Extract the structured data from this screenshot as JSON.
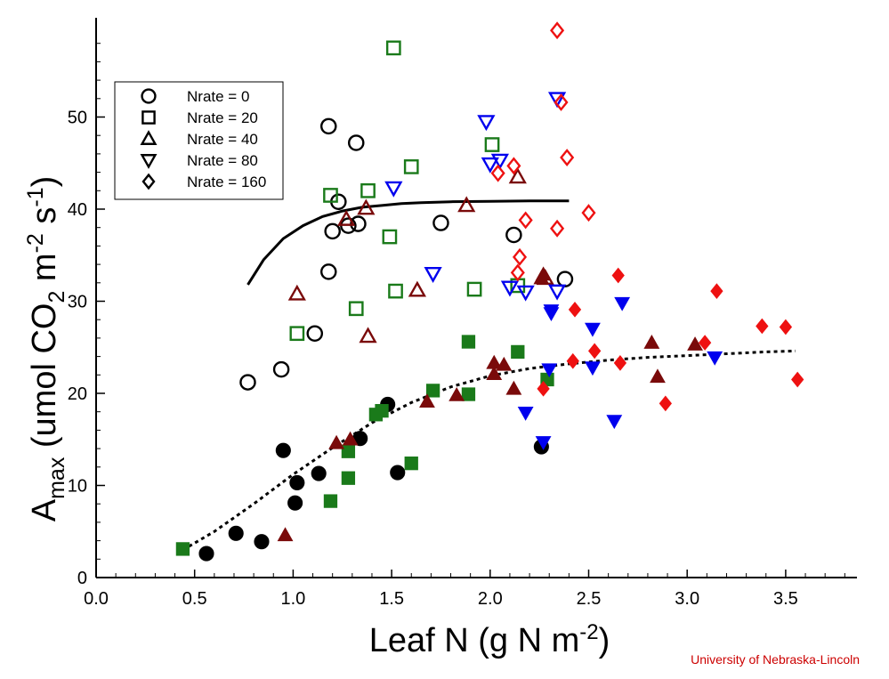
{
  "chart_data": {
    "type": "scatter",
    "title": "",
    "xlabel": "Leaf N (g N m",
    "xlabel_sup": "-2",
    "xlabel_close": ")",
    "ylabel_main": "A",
    "ylabel_sub": "max",
    "ylabel_part1": " (umol CO",
    "ylabel_part1_sub": "2",
    "ylabel_part2": " m",
    "ylabel_sup1": "-2",
    "ylabel_part3": " s",
    "ylabel_sup2": "-1",
    "ylabel_close": ")",
    "xlim": [
      0,
      3.85
    ],
    "ylim": [
      0,
      60
    ],
    "xticks": [
      "0.0",
      "0.5",
      "1.0",
      "1.5",
      "2.0",
      "2.5",
      "3.0",
      "3.5"
    ],
    "yticks": [
      "0",
      "10",
      "20",
      "30",
      "40",
      "50"
    ],
    "grid": false,
    "legend_position": "top-left",
    "colors": {
      "nrate0": "#000000",
      "nrate20": "#1a7a1a",
      "nrate40": "#7a0a0a",
      "nrate80": "#0000ee",
      "nrate160": "#ee1111"
    },
    "legend": [
      {
        "label": "Nrate = 0",
        "marker": "circle"
      },
      {
        "label": "Nrate = 20",
        "marker": "square"
      },
      {
        "label": "Nrate = 40",
        "marker": "triangle-up"
      },
      {
        "label": "Nrate = 80",
        "marker": "triangle-down"
      },
      {
        "label": "Nrate = 160",
        "marker": "diamond"
      }
    ],
    "series": [
      {
        "name": "Nrate = 0",
        "marker": "circle",
        "filled": false,
        "color": "#000000",
        "x": [
          0.77,
          0.94,
          1.11,
          1.18,
          1.18,
          1.2,
          1.23,
          1.28,
          1.32,
          1.33,
          1.75,
          2.12,
          2.38
        ],
        "y": [
          21.2,
          22.6,
          26.5,
          33.2,
          49.0,
          37.6,
          40.8,
          38.2,
          47.2,
          38.4,
          38.5,
          37.2,
          32.4
        ]
      },
      {
        "name": "Nrate = 20",
        "marker": "square",
        "filled": false,
        "color": "#1a7a1a",
        "x": [
          1.02,
          1.19,
          1.32,
          1.38,
          1.49,
          1.52,
          1.51,
          1.6,
          1.92,
          2.01,
          2.14
        ],
        "y": [
          26.5,
          41.5,
          29.2,
          42.0,
          37.0,
          31.1,
          57.5,
          44.6,
          31.3,
          47.0,
          31.7
        ]
      },
      {
        "name": "Nrate = 40",
        "marker": "triangle-up",
        "filled": false,
        "color": "#7a0a0a",
        "x": [
          1.02,
          1.27,
          1.37,
          1.38,
          1.63,
          1.88,
          2.14,
          2.28
        ],
        "y": [
          30.8,
          38.9,
          40.1,
          26.2,
          31.2,
          40.4,
          43.5,
          32.5
        ]
      },
      {
        "name": "Nrate = 80",
        "marker": "triangle-down",
        "filled": false,
        "color": "#0000ee",
        "x": [
          1.51,
          1.71,
          1.98,
          2.0,
          2.05,
          2.1,
          2.18,
          2.34,
          2.34
        ],
        "y": [
          42.3,
          33.0,
          49.5,
          44.9,
          45.3,
          31.5,
          31.0,
          31.1,
          52.0
        ]
      },
      {
        "name": "Nrate = 160",
        "marker": "diamond",
        "filled": false,
        "color": "#ee1111",
        "x": [
          2.04,
          2.12,
          2.15,
          2.14,
          2.18,
          2.34,
          2.34,
          2.36,
          2.39,
          2.5
        ],
        "y": [
          43.9,
          44.7,
          34.8,
          33.1,
          38.8,
          37.9,
          59.4,
          51.6,
          45.6,
          39.6
        ]
      },
      {
        "name": "Nrate = 0",
        "marker": "circle",
        "filled": true,
        "color": "#000000",
        "x": [
          0.56,
          0.71,
          0.84,
          0.95,
          1.01,
          1.02,
          1.13,
          1.34,
          1.48,
          1.53,
          2.26
        ],
        "y": [
          2.6,
          4.8,
          3.9,
          13.8,
          8.1,
          10.3,
          11.3,
          15.1,
          18.8,
          11.4,
          14.2
        ]
      },
      {
        "name": "Nrate = 20",
        "marker": "square",
        "filled": true,
        "color": "#1a7a1a",
        "x": [
          0.44,
          1.19,
          1.28,
          1.28,
          1.42,
          1.45,
          1.6,
          1.71,
          1.89,
          1.89,
          2.14,
          2.29
        ],
        "y": [
          3.1,
          8.3,
          10.8,
          13.7,
          17.7,
          18.1,
          12.4,
          20.3,
          19.9,
          25.6,
          24.5,
          21.5
        ]
      },
      {
        "name": "Nrate = 40",
        "marker": "triangle-up",
        "filled": true,
        "color": "#7a0a0a",
        "x": [
          0.96,
          1.22,
          1.29,
          1.68,
          1.83,
          2.02,
          2.02,
          2.07,
          2.12,
          2.26,
          2.27,
          2.82,
          2.85,
          3.04
        ],
        "y": [
          4.6,
          14.6,
          15.0,
          19.1,
          19.8,
          23.3,
          22.1,
          23.1,
          20.5,
          32.5,
          32.9,
          25.5,
          21.8,
          25.3
        ]
      },
      {
        "name": "Nrate = 80",
        "marker": "triangle-down",
        "filled": true,
        "color": "#0000ee",
        "x": [
          2.18,
          2.27,
          2.3,
          2.31,
          2.31,
          2.52,
          2.52,
          2.63,
          2.67,
          3.14
        ],
        "y": [
          17.9,
          14.7,
          22.6,
          28.7,
          29.0,
          27.0,
          22.8,
          17.0,
          29.8,
          23.9
        ]
      },
      {
        "name": "Nrate = 160",
        "marker": "diamond",
        "filled": true,
        "color": "#ee1111",
        "x": [
          2.27,
          2.42,
          2.43,
          2.53,
          2.65,
          2.66,
          2.89,
          3.09,
          3.15,
          3.38,
          3.5,
          3.56
        ],
        "y": [
          20.5,
          23.5,
          29.1,
          24.6,
          32.8,
          23.3,
          18.9,
          25.5,
          31.1,
          27.3,
          27.2,
          21.5
        ]
      }
    ],
    "fits": [
      {
        "style": "solid",
        "color": "#000000",
        "x": [
          0.77,
          0.85,
          0.95,
          1.05,
          1.15,
          1.25,
          1.35,
          1.45,
          1.55,
          1.65,
          1.8,
          2.0,
          2.2,
          2.4
        ],
        "y": [
          31.8,
          34.5,
          36.8,
          38.2,
          39.2,
          39.8,
          40.2,
          40.4,
          40.6,
          40.7,
          40.8,
          40.85,
          40.9,
          40.9
        ]
      },
      {
        "style": "dotted",
        "color": "#000000",
        "x": [
          0.44,
          0.6,
          0.8,
          1.0,
          1.2,
          1.4,
          1.6,
          1.8,
          2.0,
          2.2,
          2.4,
          2.6,
          2.8,
          3.0,
          3.2,
          3.4,
          3.55
        ],
        "y": [
          3.0,
          5.0,
          8.0,
          11.2,
          14.1,
          16.8,
          19.0,
          20.7,
          21.9,
          22.7,
          23.2,
          23.6,
          23.9,
          24.1,
          24.3,
          24.5,
          24.6
        ]
      }
    ]
  },
  "credit": "University of Nebraska-Lincoln"
}
